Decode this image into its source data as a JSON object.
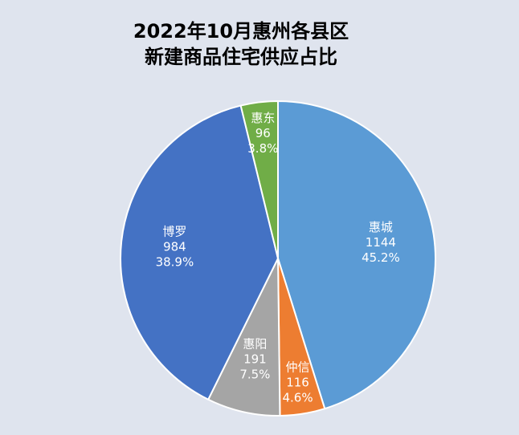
{
  "chart_data": {
    "type": "pie",
    "title_lines": [
      "2022年10月惠州各县区",
      "新建商品住宅供应占比"
    ],
    "categories": [
      "惠城",
      "仲信",
      "惠阳",
      "博罗",
      "惠东"
    ],
    "values": [
      1144,
      116,
      191,
      984,
      96
    ],
    "percents": [
      45.2,
      4.6,
      7.5,
      38.9,
      3.8
    ],
    "percent_labels": [
      "45.2%",
      "4.6%",
      "7.5%",
      "38.9%",
      "3.8%"
    ],
    "colors": [
      "#5b9bd5",
      "#ed7d31",
      "#a5a5a5",
      "#4472c4",
      "#70ad47"
    ]
  }
}
